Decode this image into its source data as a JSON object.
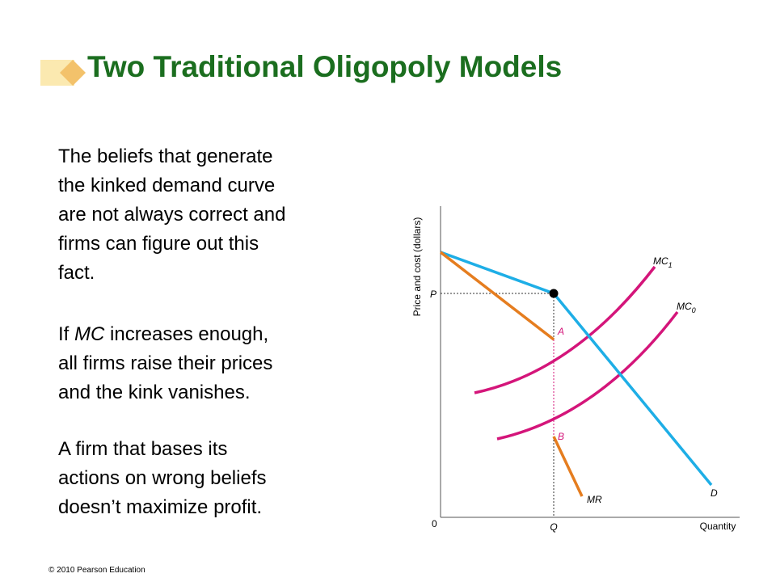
{
  "header": {
    "title": "Two Traditional Oligopoly Models"
  },
  "body": {
    "paragraphs": [
      {
        "lines": [
          "The beliefs that generate",
          "the kinked demand curve",
          "are not always correct and",
          "firms can figure out this",
          "fact."
        ]
      },
      {
        "lines": [
          [
            "If ",
            "MC",
            " increases enough,"
          ],
          "all firms raise their prices",
          "and the kink vanishes."
        ]
      },
      {
        "lines": [
          "A firm that bases its",
          "actions on wrong beliefs",
          "doesn’t maximize profit."
        ]
      }
    ]
  },
  "diagram": {
    "y_axis_label": "Price and cost (dollars)",
    "x_axis_label": "Quantity",
    "origin": "0",
    "price_label": "P",
    "quantity_label": "Q",
    "curves": {
      "mc1": {
        "label": "MC",
        "subscript": "1"
      },
      "mc0": {
        "label": "MC",
        "subscript": "0"
      },
      "demand": "D",
      "marginal_revenue": "MR"
    },
    "points": {
      "a": "A",
      "b": "B"
    }
  },
  "footer": "© 2010 Pearson Education"
}
